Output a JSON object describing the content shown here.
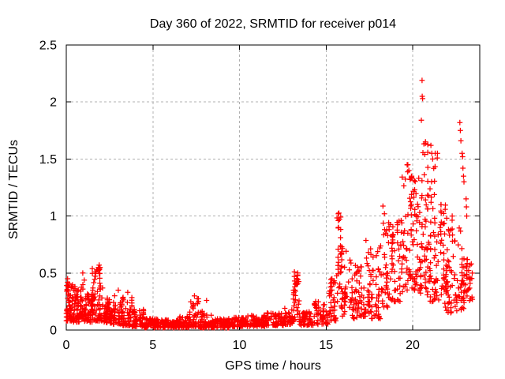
{
  "chart_data": {
    "type": "scatter",
    "title": "Day 360 of 2022, SRMTID for receiver p014",
    "xlabel": "GPS time / hours",
    "ylabel": "SRMTID / TECUs",
    "xlim": [
      0,
      23.87
    ],
    "ylim": [
      0,
      2.5
    ],
    "xticks": [
      {
        "v": 0,
        "label": "0"
      },
      {
        "v": 5,
        "label": "5"
      },
      {
        "v": 10,
        "label": "10"
      },
      {
        "v": 15,
        "label": "15"
      },
      {
        "v": 20,
        "label": "20"
      }
    ],
    "yticks": [
      {
        "v": 0,
        "label": "0"
      },
      {
        "v": 0.5,
        "label": "0.5"
      },
      {
        "v": 1,
        "label": "1"
      },
      {
        "v": 1.5,
        "label": "1.5"
      },
      {
        "v": 2,
        "label": "2"
      },
      {
        "v": 2.5,
        "label": "2.5"
      }
    ],
    "grid": true,
    "legend": "none",
    "colors": {
      "marker": "#ff0000",
      "border": "#000000",
      "grid": "#b0b0b0",
      "text": "#000000"
    },
    "series": [
      {
        "name": "SRMTID",
        "marker": "plus",
        "color": "#ff0000",
        "point_bands_format": [
          "x_start_h",
          "x_end_h",
          "n_points",
          "y_min",
          "y_max",
          "skew_low"
        ],
        "point_bands": [
          [
            0.0,
            0.4,
            60,
            0.08,
            0.45,
            1.5
          ],
          [
            0.4,
            0.8,
            50,
            0.07,
            0.38,
            1.7
          ],
          [
            0.8,
            1.05,
            28,
            0.1,
            0.5,
            1.5
          ],
          [
            1.05,
            1.5,
            55,
            0.07,
            0.32,
            1.6
          ],
          [
            1.5,
            2.1,
            70,
            0.08,
            0.55,
            1.8
          ],
          [
            2.1,
            2.7,
            60,
            0.06,
            0.28,
            1.6
          ],
          [
            2.7,
            3.25,
            50,
            0.05,
            0.34,
            1.7
          ],
          [
            3.25,
            3.8,
            48,
            0.04,
            0.3,
            2.0
          ],
          [
            3.8,
            4.5,
            55,
            0.03,
            0.18,
            1.8
          ],
          [
            4.5,
            5.5,
            78,
            0.02,
            0.1,
            1.3
          ],
          [
            5.5,
            6.5,
            78,
            0.02,
            0.09,
            1.3
          ],
          [
            6.5,
            7.1,
            45,
            0.02,
            0.12,
            1.5
          ],
          [
            7.1,
            7.7,
            45,
            0.03,
            0.28,
            2.1
          ],
          [
            7.7,
            8.4,
            52,
            0.02,
            0.18,
            2.1
          ],
          [
            8.4,
            9.4,
            72,
            0.02,
            0.1,
            1.3
          ],
          [
            9.4,
            10.4,
            72,
            0.03,
            0.11,
            1.3
          ],
          [
            10.4,
            11.5,
            78,
            0.03,
            0.13,
            1.4
          ],
          [
            11.5,
            12.6,
            78,
            0.04,
            0.15,
            1.4
          ],
          [
            12.6,
            13.1,
            36,
            0.05,
            0.2,
            1.6
          ],
          [
            13.1,
            13.45,
            30,
            0.08,
            0.5,
            1.5
          ],
          [
            13.45,
            14.3,
            56,
            0.04,
            0.16,
            1.5
          ],
          [
            14.3,
            15.1,
            55,
            0.05,
            0.25,
            1.7
          ],
          [
            15.1,
            15.6,
            36,
            0.08,
            0.45,
            1.6
          ],
          [
            15.6,
            15.85,
            22,
            0.25,
            1.05,
            1.4
          ],
          [
            15.85,
            16.4,
            40,
            0.12,
            0.75,
            1.7
          ],
          [
            16.4,
            16.95,
            40,
            0.1,
            0.6,
            1.6
          ],
          [
            16.95,
            17.55,
            42,
            0.12,
            0.8,
            1.7
          ],
          [
            17.55,
            18.15,
            42,
            0.1,
            0.75,
            1.7
          ],
          [
            18.15,
            18.7,
            40,
            0.2,
            1.1,
            1.6
          ],
          [
            18.7,
            19.3,
            46,
            0.25,
            1.0,
            1.4
          ],
          [
            19.3,
            19.9,
            50,
            0.3,
            1.45,
            1.5
          ],
          [
            19.9,
            20.45,
            56,
            0.35,
            1.35,
            1.3
          ],
          [
            20.45,
            20.95,
            56,
            0.3,
            1.65,
            1.3
          ],
          [
            20.95,
            21.45,
            50,
            0.25,
            1.55,
            1.5
          ],
          [
            21.45,
            21.95,
            46,
            0.2,
            1.1,
            1.4
          ],
          [
            21.95,
            22.5,
            45,
            0.15,
            1.0,
            1.5
          ],
          [
            22.5,
            23.0,
            40,
            0.15,
            0.95,
            1.4
          ],
          [
            23.0,
            23.45,
            30,
            0.25,
            0.62,
            1.2
          ]
        ],
        "peak_points": [
          [
            20.54,
            2.19
          ],
          [
            20.55,
            2.05
          ],
          [
            20.57,
            2.03
          ],
          [
            20.5,
            1.84
          ],
          [
            22.72,
            1.82
          ],
          [
            22.75,
            1.75
          ],
          [
            22.78,
            1.66
          ],
          [
            22.85,
            1.55
          ],
          [
            22.88,
            1.52
          ],
          [
            22.9,
            1.42
          ],
          [
            22.93,
            1.35
          ],
          [
            22.96,
            1.3
          ],
          [
            21.05,
            1.62
          ],
          [
            21.1,
            1.55
          ],
          [
            21.15,
            1.5
          ],
          [
            19.72,
            1.45
          ],
          [
            19.78,
            1.4
          ],
          [
            19.85,
            1.32
          ],
          [
            23.08,
            1.15
          ],
          [
            23.1,
            1.08
          ],
          [
            23.12,
            1.0
          ],
          [
            15.7,
            1.02
          ],
          [
            15.7,
            0.96
          ],
          [
            15.71,
            0.9
          ],
          [
            13.17,
            0.51
          ],
          [
            13.17,
            0.47
          ],
          [
            13.18,
            0.43
          ],
          [
            13.19,
            0.38
          ],
          [
            1.9,
            0.57
          ],
          [
            1.95,
            0.55
          ],
          [
            0.95,
            0.5
          ],
          [
            1.7,
            0.51
          ],
          [
            3.0,
            0.35
          ],
          [
            3.55,
            0.33
          ],
          [
            7.4,
            0.3
          ],
          [
            8.1,
            0.26
          ],
          [
            15.2,
            0.3
          ]
        ]
      }
    ]
  }
}
